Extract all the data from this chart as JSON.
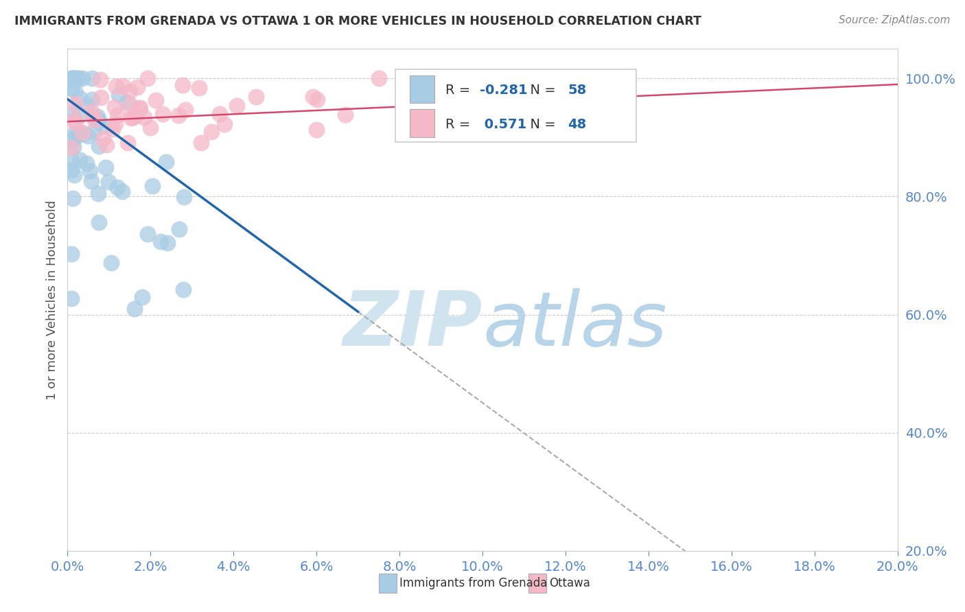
{
  "title": "IMMIGRANTS FROM GRENADA VS OTTAWA 1 OR MORE VEHICLES IN HOUSEHOLD CORRELATION CHART",
  "source": "Source: ZipAtlas.com",
  "yaxis_label": "1 or more Vehicles in Household",
  "legend_label_blue": "Immigrants from Grenada",
  "legend_label_pink": "Ottawa",
  "R_blue": -0.281,
  "N_blue": 58,
  "R_pink": 0.571,
  "N_pink": 48,
  "blue_color": "#a8cce4",
  "pink_color": "#f4b8c8",
  "trend_blue": "#2166ac",
  "trend_pink": "#d6456a",
  "watermark_color": "#d0e4f0",
  "background": "#ffffff",
  "xlim": [
    0.0,
    0.2
  ],
  "ylim": [
    0.2,
    1.05
  ],
  "grid_color": "#cccccc",
  "tick_color": "#5588cc",
  "spine_color": "#cccccc",
  "ylabel_color": "#555555",
  "title_color": "#333333",
  "source_color": "#888888",
  "legend_text_color": "#333333",
  "legend_value_color": "#2166ac"
}
